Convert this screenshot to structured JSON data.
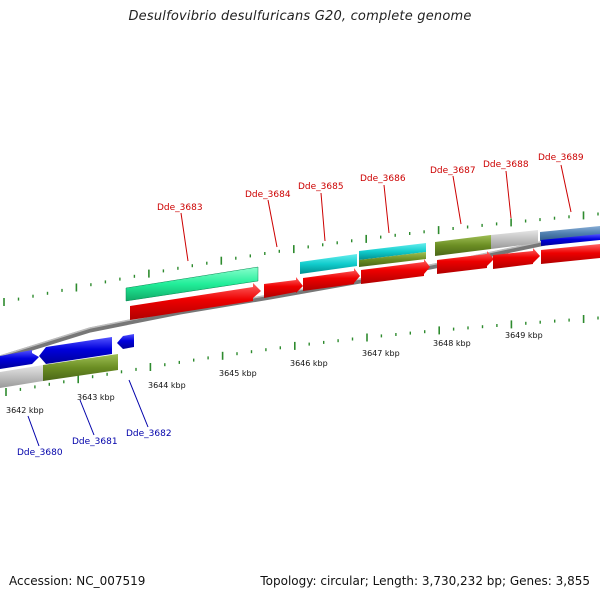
{
  "title": "Desulfovibrio desulfuricans G20, complete genome",
  "footer": {
    "accession": "Accession: NC_007519",
    "summary": "Topology: circular; Length: 3,730,232 bp; Genes: 3,855"
  },
  "scale_labels": [
    "3642 kbp",
    "3643 kbp",
    "3644 kbp",
    "3645 kbp",
    "3646 kbp",
    "3647 kbp",
    "3648 kbp",
    "3649 kbp"
  ],
  "gene_labels_top": [
    "Dde_3683",
    "Dde_3684",
    "Dde_3685",
    "Dde_3686",
    "Dde_3687",
    "Dde_3688",
    "Dde_3689"
  ],
  "gene_labels_bottom": [
    "Dde_3680",
    "Dde_3681",
    "Dde_3682"
  ],
  "colors": {
    "forward_label": "#cc0000",
    "reverse_label": "#0000aa",
    "backbone": "#888888",
    "tick": "#2e8b2e",
    "cds_red": "#ee0000",
    "cds_blue": "#0000dd",
    "green_light": "#22ee99",
    "cyan": "#11cccc",
    "olive": "#6b8e23",
    "grey": "#c0c0c0",
    "steel_blue": "#4f7fb0"
  }
}
